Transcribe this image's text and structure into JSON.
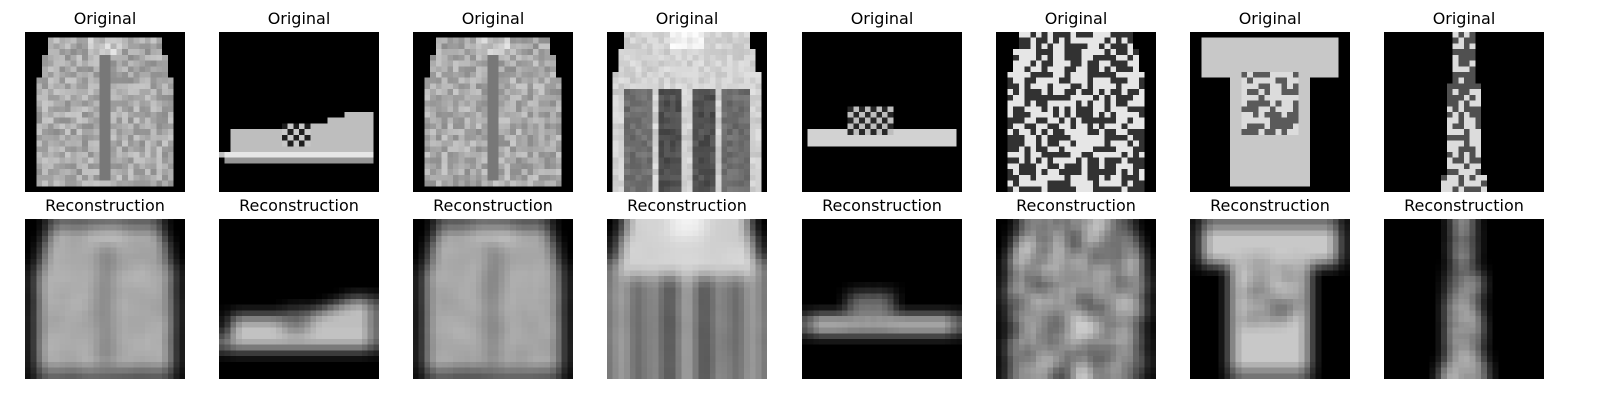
{
  "figure": {
    "background": "#ffffff",
    "rows": [
      {
        "title": "Original",
        "kind": "original",
        "items": [
          {
            "subject": "jacket"
          },
          {
            "subject": "sneaker"
          },
          {
            "subject": "hoodie"
          },
          {
            "subject": "varsity-jacket"
          },
          {
            "subject": "slide-sandal"
          },
          {
            "subject": "patterned-sweater"
          },
          {
            "subject": "graphic-tshirt"
          },
          {
            "subject": "patterned-dress"
          }
        ]
      },
      {
        "title": "Reconstruction",
        "kind": "reconstruction",
        "items": [
          {
            "subject": "jacket"
          },
          {
            "subject": "sneaker"
          },
          {
            "subject": "hoodie"
          },
          {
            "subject": "varsity-jacket"
          },
          {
            "subject": "slide-sandal"
          },
          {
            "subject": "patterned-sweater"
          },
          {
            "subject": "graphic-tshirt"
          },
          {
            "subject": "patterned-dress"
          }
        ]
      }
    ]
  }
}
